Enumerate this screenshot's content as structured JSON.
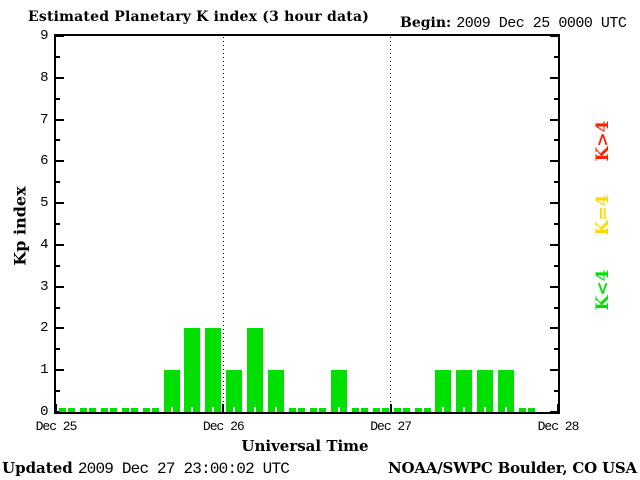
{
  "header": {
    "title": "Estimated Planetary K index (3 hour data)",
    "begin_label": "Begin:",
    "begin_value": "2009 Dec 25 0000 UTC"
  },
  "chart_data": {
    "type": "bar",
    "title": "Estimated Planetary K index (3 hour data)",
    "begin": "2009 Dec 25 0000 UTC",
    "xlabel": "Universal Time",
    "ylabel": "Kp index",
    "ylim": [
      0,
      9
    ],
    "yticks": [
      0,
      1,
      2,
      3,
      4,
      5,
      6,
      7,
      8,
      9
    ],
    "hours_per_bar": 3,
    "bars_per_day": 8,
    "x_day_labels": [
      "Dec 25",
      "Dec 26",
      "Dec 27",
      "Dec 28"
    ],
    "day_boundary_gridlines": [
      "Dec 26",
      "Dec 27"
    ],
    "series": [
      {
        "name": "Estimated Kp",
        "values": [
          0,
          0,
          0,
          0,
          0,
          1,
          2,
          2,
          1,
          2,
          1,
          0,
          0,
          1,
          0,
          0,
          0,
          0,
          1,
          1,
          1,
          1,
          0,
          null
        ]
      }
    ],
    "color_rules": {
      "k_lt_4": "#00e000",
      "k_eq_4": "#ffd700",
      "k_gt_4": "#ff2000"
    },
    "legend_position": "right",
    "legend": [
      {
        "label": "K>4",
        "color": "#ff2000"
      },
      {
        "label": "K=4",
        "color": "#ffd700"
      },
      {
        "label": "K<4",
        "color": "#00e000"
      }
    ],
    "grid": "vertical dotted lines at day boundaries only"
  },
  "footer": {
    "updated_label": "Updated",
    "updated_value": "2009 Dec 27 23:00:02 UTC",
    "source": "NOAA/SWPC Boulder, CO USA"
  }
}
